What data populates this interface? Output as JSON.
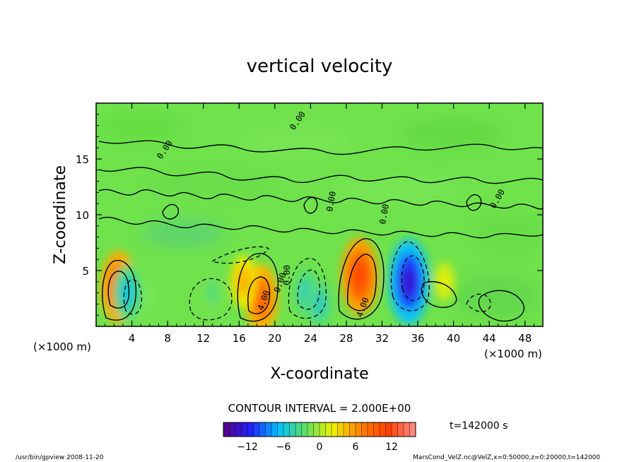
{
  "chart_data": {
    "type": "heatmap",
    "title": "vertical velocity",
    "xlabel": "X-coordinate",
    "ylabel": "Z-coordinate",
    "x_unit_left": "(×1000 m)",
    "x_unit_right": "(×1000 m)",
    "xlim": [
      0,
      50
    ],
    "ylim": [
      0,
      20
    ],
    "x_ticks": [
      4,
      8,
      12,
      16,
      20,
      24,
      28,
      32,
      36,
      40,
      44,
      48
    ],
    "y_ticks": [
      5,
      10,
      15
    ],
    "contour_interval": "CONTOUR INTERVAL = 2.000E+00",
    "time_label": "t=142000 s",
    "colorbar": {
      "range": [
        -16,
        16
      ],
      "ticks": [
        -12,
        -6,
        0,
        6,
        12
      ],
      "colors": [
        "#5a0080",
        "#2020ff",
        "#00c0ff",
        "#60e060",
        "#f0f000",
        "#ff8000",
        "#ff4000",
        "#ff9090"
      ]
    },
    "contour_labels": [
      "0.00",
      "0.00",
      "0.00",
      "0.00",
      "0.00",
      "0.00",
      "0.00",
      "4.00",
      "4.00"
    ],
    "cells": [
      {
        "x": 2.5,
        "z": 3.5,
        "value": 10
      },
      {
        "x": 3.5,
        "z": 3.0,
        "value": -6
      },
      {
        "x": 18.5,
        "z": 2.5,
        "value": 9
      },
      {
        "x": 16.5,
        "z": 4.0,
        "value": 5
      },
      {
        "x": 23.5,
        "z": 3.0,
        "value": -5
      },
      {
        "x": 25.0,
        "z": 2.0,
        "value": -5
      },
      {
        "x": 29.5,
        "z": 4.5,
        "value": 11
      },
      {
        "x": 35.0,
        "z": 4.0,
        "value": -13
      },
      {
        "x": 13.0,
        "z": 3.0,
        "value": -3
      },
      {
        "x": 39.0,
        "z": 4.0,
        "value": 2
      }
    ]
  },
  "footer": {
    "left": "/usr/bin/gpview  2008-11-20",
    "right": "MarsCond_VelZ.nc@VelZ,x=0:50000,z=0:20000,t=142000"
  }
}
